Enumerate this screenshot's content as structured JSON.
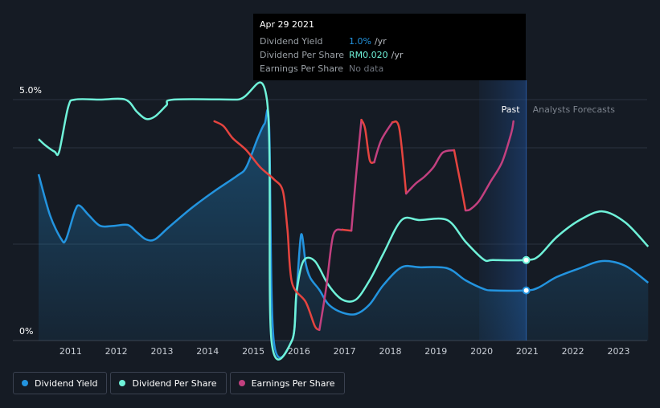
{
  "tooltip": {
    "date": "Apr 29 2021",
    "rows": [
      {
        "label": "Dividend Yield",
        "value": "1.0%",
        "unit": "/yr",
        "color": "#2394df"
      },
      {
        "label": "Dividend Per Share",
        "value": "RM0.020",
        "unit": "/yr",
        "color": "#6ff2d9"
      },
      {
        "label": "Earnings Per Share",
        "value": "No data",
        "unit": "",
        "color": "#6f757e"
      }
    ]
  },
  "region_labels": {
    "past": "Past",
    "forecast": "Analysts Forecasts"
  },
  "legend": [
    {
      "label": "Dividend Yield",
      "color": "#2394df"
    },
    {
      "label": "Dividend Per Share",
      "color": "#6ff2d9"
    },
    {
      "label": "Earnings Per Share",
      "color": "#c2407f"
    }
  ],
  "chart_data": {
    "type": "line",
    "xlim": [
      2010.6,
      2024.0
    ],
    "ylim": [
      0,
      5.0
    ],
    "y_ticks": [
      {
        "value": 5.0,
        "label": "5.0%"
      },
      {
        "value": 0,
        "label": "0%"
      }
    ],
    "x_ticks": [
      2011,
      2012,
      2013,
      2014,
      2015,
      2016,
      2017,
      2018,
      2019,
      2020,
      2021,
      2022,
      2023
    ],
    "past_region": [
      2020.3,
      2021.33
    ],
    "marker_x": 2021.33,
    "colors": {
      "dividend_yield": "#2394df",
      "dividend_per_share": "#6ff2d9",
      "eps_up": "#c2407f",
      "eps_down": "#e5443f"
    },
    "series": [
      {
        "name": "Dividend Yield",
        "key": "dividend_yield",
        "area": true,
        "points": [
          [
            2010.65,
            3.45
          ],
          [
            2010.9,
            2.6
          ],
          [
            2011.15,
            2.1
          ],
          [
            2011.25,
            2.1
          ],
          [
            2011.45,
            2.7
          ],
          [
            2011.55,
            2.8
          ],
          [
            2011.75,
            2.6
          ],
          [
            2012.0,
            2.38
          ],
          [
            2012.3,
            2.38
          ],
          [
            2012.6,
            2.4
          ],
          [
            2012.8,
            2.25
          ],
          [
            2013.0,
            2.1
          ],
          [
            2013.2,
            2.1
          ],
          [
            2013.5,
            2.35
          ],
          [
            2014.0,
            2.75
          ],
          [
            2014.5,
            3.1
          ],
          [
            2015.0,
            3.42
          ],
          [
            2015.2,
            3.6
          ],
          [
            2015.45,
            4.2
          ],
          [
            2015.6,
            4.5
          ],
          [
            2015.7,
            4.45
          ],
          [
            2015.8,
            0.0
          ],
          [
            2016.2,
            0.0
          ],
          [
            2016.3,
            1.0
          ],
          [
            2016.4,
            2.2
          ],
          [
            2016.5,
            1.6
          ],
          [
            2016.6,
            1.3
          ],
          [
            2016.8,
            1.05
          ],
          [
            2017.0,
            0.75
          ],
          [
            2017.3,
            0.58
          ],
          [
            2017.6,
            0.55
          ],
          [
            2017.9,
            0.75
          ],
          [
            2018.2,
            1.15
          ],
          [
            2018.6,
            1.52
          ],
          [
            2019.0,
            1.52
          ],
          [
            2019.6,
            1.5
          ],
          [
            2020.0,
            1.25
          ],
          [
            2020.4,
            1.07
          ],
          [
            2020.6,
            1.04
          ],
          [
            2021.33,
            1.04
          ],
          [
            2021.6,
            1.1
          ],
          [
            2022.0,
            1.32
          ],
          [
            2022.5,
            1.5
          ],
          [
            2023.0,
            1.65
          ],
          [
            2023.5,
            1.55
          ],
          [
            2024.0,
            1.2
          ]
        ]
      },
      {
        "name": "Dividend Per Share",
        "key": "dividend_per_share",
        "area": false,
        "points": [
          [
            2010.65,
            4.18
          ],
          [
            2010.8,
            4.05
          ],
          [
            2011.0,
            3.92
          ],
          [
            2011.1,
            3.92
          ],
          [
            2011.3,
            4.85
          ],
          [
            2011.45,
            5.0
          ],
          [
            2012.0,
            5.0
          ],
          [
            2012.55,
            5.0
          ],
          [
            2012.8,
            4.75
          ],
          [
            2013.0,
            4.6
          ],
          [
            2013.2,
            4.65
          ],
          [
            2013.45,
            4.88
          ],
          [
            2013.6,
            5.0
          ],
          [
            2015.0,
            5.0
          ],
          [
            2015.65,
            5.0
          ],
          [
            2015.75,
            0.0
          ],
          [
            2016.2,
            0.0
          ],
          [
            2016.3,
            1.0
          ],
          [
            2016.45,
            1.65
          ],
          [
            2016.7,
            1.65
          ],
          [
            2017.0,
            1.15
          ],
          [
            2017.3,
            0.85
          ],
          [
            2017.6,
            0.85
          ],
          [
            2017.9,
            1.25
          ],
          [
            2018.2,
            1.8
          ],
          [
            2018.6,
            2.5
          ],
          [
            2019.0,
            2.5
          ],
          [
            2019.6,
            2.5
          ],
          [
            2020.0,
            2.05
          ],
          [
            2020.4,
            1.68
          ],
          [
            2020.6,
            1.67
          ],
          [
            2021.33,
            1.67
          ],
          [
            2021.6,
            1.75
          ],
          [
            2022.0,
            2.15
          ],
          [
            2022.5,
            2.5
          ],
          [
            2023.0,
            2.68
          ],
          [
            2023.5,
            2.45
          ],
          [
            2024.0,
            1.95
          ]
        ]
      },
      {
        "name": "Earnings Per Share",
        "key": "eps",
        "area": false,
        "points": [
          [
            2014.5,
            4.55
          ],
          [
            2014.7,
            4.45
          ],
          [
            2014.9,
            4.2
          ],
          [
            2015.2,
            3.95
          ],
          [
            2015.5,
            3.6
          ],
          [
            2015.8,
            3.35
          ],
          [
            2016.0,
            3.1
          ],
          [
            2016.1,
            2.3
          ],
          [
            2016.2,
            1.2
          ],
          [
            2016.5,
            0.8
          ],
          [
            2016.7,
            0.3
          ],
          [
            2016.8,
            0.22
          ],
          [
            2016.95,
            1.1
          ],
          [
            2017.1,
            2.18
          ],
          [
            2017.3,
            2.3
          ],
          [
            2017.5,
            2.28
          ],
          [
            2017.6,
            3.4
          ],
          [
            2017.72,
            4.58
          ],
          [
            2017.8,
            4.4
          ],
          [
            2017.9,
            3.75
          ],
          [
            2018.0,
            3.7
          ],
          [
            2018.15,
            4.15
          ],
          [
            2018.4,
            4.53
          ],
          [
            2018.55,
            4.4
          ],
          [
            2018.7,
            3.05
          ],
          [
            2018.9,
            3.25
          ],
          [
            2019.1,
            3.4
          ],
          [
            2019.3,
            3.6
          ],
          [
            2019.5,
            3.9
          ],
          [
            2019.75,
            3.95
          ],
          [
            2019.9,
            3.22
          ],
          [
            2020.0,
            2.7
          ],
          [
            2020.1,
            2.72
          ],
          [
            2020.3,
            2.9
          ],
          [
            2020.55,
            3.3
          ],
          [
            2020.8,
            3.7
          ],
          [
            2021.0,
            4.3
          ],
          [
            2021.05,
            4.55
          ]
        ]
      }
    ]
  }
}
